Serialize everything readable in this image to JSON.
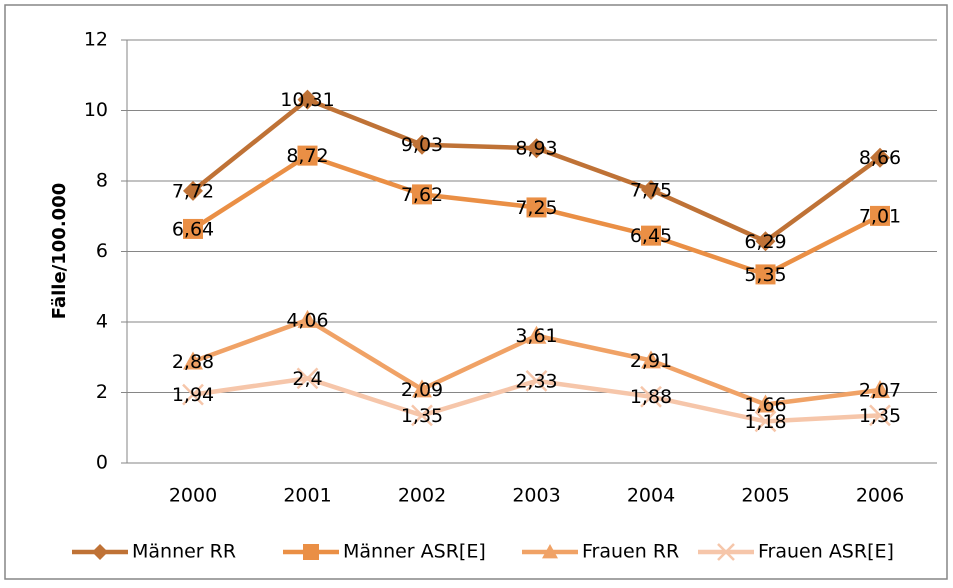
{
  "chart_data": {
    "type": "line",
    "y_label": "Fälle/100.000",
    "categories": [
      "2000",
      "2001",
      "2002",
      "2003",
      "2004",
      "2005",
      "2006"
    ],
    "series": [
      {
        "name": "Männer RR",
        "color": "#bf7236",
        "marker": "diamond",
        "values": [
          7.72,
          10.31,
          9.03,
          8.93,
          7.75,
          6.29,
          8.66
        ],
        "value_labels": [
          "7,72",
          "10,31",
          "9,03",
          "8,93",
          "7,75",
          "6,29",
          "8,66"
        ]
      },
      {
        "name": "Männer ASR[E]",
        "color": "#ea8f45",
        "marker": "square",
        "values": [
          6.64,
          8.72,
          7.62,
          7.25,
          6.45,
          5.35,
          7.01
        ],
        "value_labels": [
          "6,64",
          "8,72",
          "7,62",
          "7,25",
          "6,45",
          "5,35",
          "7,01"
        ]
      },
      {
        "name": "Frauen RR",
        "color": "#f0a266",
        "marker": "triangle",
        "values": [
          2.88,
          4.06,
          2.09,
          3.61,
          2.91,
          1.66,
          2.07
        ],
        "value_labels": [
          "2,88",
          "4,06",
          "2,09",
          "3,61",
          "2,91",
          "1,66",
          "2,07"
        ]
      },
      {
        "name": "Frauen ASR[E]",
        "color": "#f6c6aa",
        "marker": "x",
        "values": [
          1.94,
          2.4,
          1.35,
          2.33,
          1.88,
          1.18,
          1.35
        ],
        "value_labels": [
          "1,94",
          "2,4",
          "1,35",
          "2,33",
          "1,88",
          "1,18",
          "1,35"
        ]
      }
    ],
    "ylim": [
      0,
      12
    ],
    "yticks": [
      0,
      2,
      4,
      6,
      8,
      10,
      12
    ],
    "grid": true,
    "legend": "bottom"
  }
}
